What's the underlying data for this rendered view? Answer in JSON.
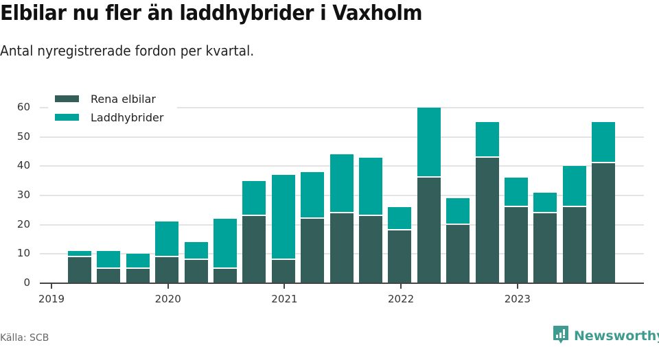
{
  "header": {
    "title": "Elbilar nu fler än laddhybrider i Vaxholm",
    "subtitle": "Antal nyregistrerade fordon per kvartal."
  },
  "legend": {
    "items": [
      {
        "label": "Rena elbilar",
        "color": "#335e59"
      },
      {
        "label": "Laddhybrider",
        "color": "#00a39a"
      }
    ]
  },
  "axes": {
    "y_ticks": [
      "0",
      "10",
      "20",
      "30",
      "40",
      "50",
      "60"
    ],
    "x_ticks": [
      "2019",
      "2020",
      "2021",
      "2022",
      "2023"
    ]
  },
  "footer": {
    "source": "Källa: SCB",
    "brand": "Newsworthy",
    "brand_color": "#3f9a8f"
  },
  "chart_data": {
    "type": "bar",
    "stacked": true,
    "title": "Elbilar nu fler än laddhybrider i Vaxholm",
    "subtitle": "Antal nyregistrerade fordon per kvartal.",
    "xlabel": "",
    "ylabel": "",
    "ylim": [
      0,
      60
    ],
    "grid": true,
    "legend_position": "top-left",
    "categories": [
      "2019 Q2",
      "2019 Q3",
      "2019 Q4",
      "2020 Q1",
      "2020 Q2",
      "2020 Q3",
      "2020 Q4",
      "2021 Q1",
      "2021 Q2",
      "2021 Q3",
      "2021 Q4",
      "2022 Q1",
      "2022 Q2",
      "2022 Q3",
      "2022 Q4",
      "2023 Q1",
      "2023 Q2",
      "2023 Q3",
      "2023 Q4"
    ],
    "series": [
      {
        "name": "Rena elbilar",
        "color": "#335e59",
        "values": [
          9,
          5,
          5,
          9,
          8,
          5,
          23,
          8,
          22,
          24,
          23,
          18,
          36,
          20,
          43,
          26,
          24,
          26,
          41
        ]
      },
      {
        "name": "Laddhybrider",
        "color": "#00a39a",
        "values": [
          2,
          6,
          5,
          12,
          6,
          17,
          12,
          29,
          16,
          20,
          20,
          8,
          24,
          9,
          12,
          10,
          7,
          14,
          14
        ]
      }
    ],
    "totals": [
      11,
      11,
      10,
      21,
      14,
      22,
      35,
      37,
      38,
      44,
      43,
      26,
      60,
      29,
      55,
      36,
      31,
      40,
      55
    ],
    "source": "Källa: SCB"
  }
}
